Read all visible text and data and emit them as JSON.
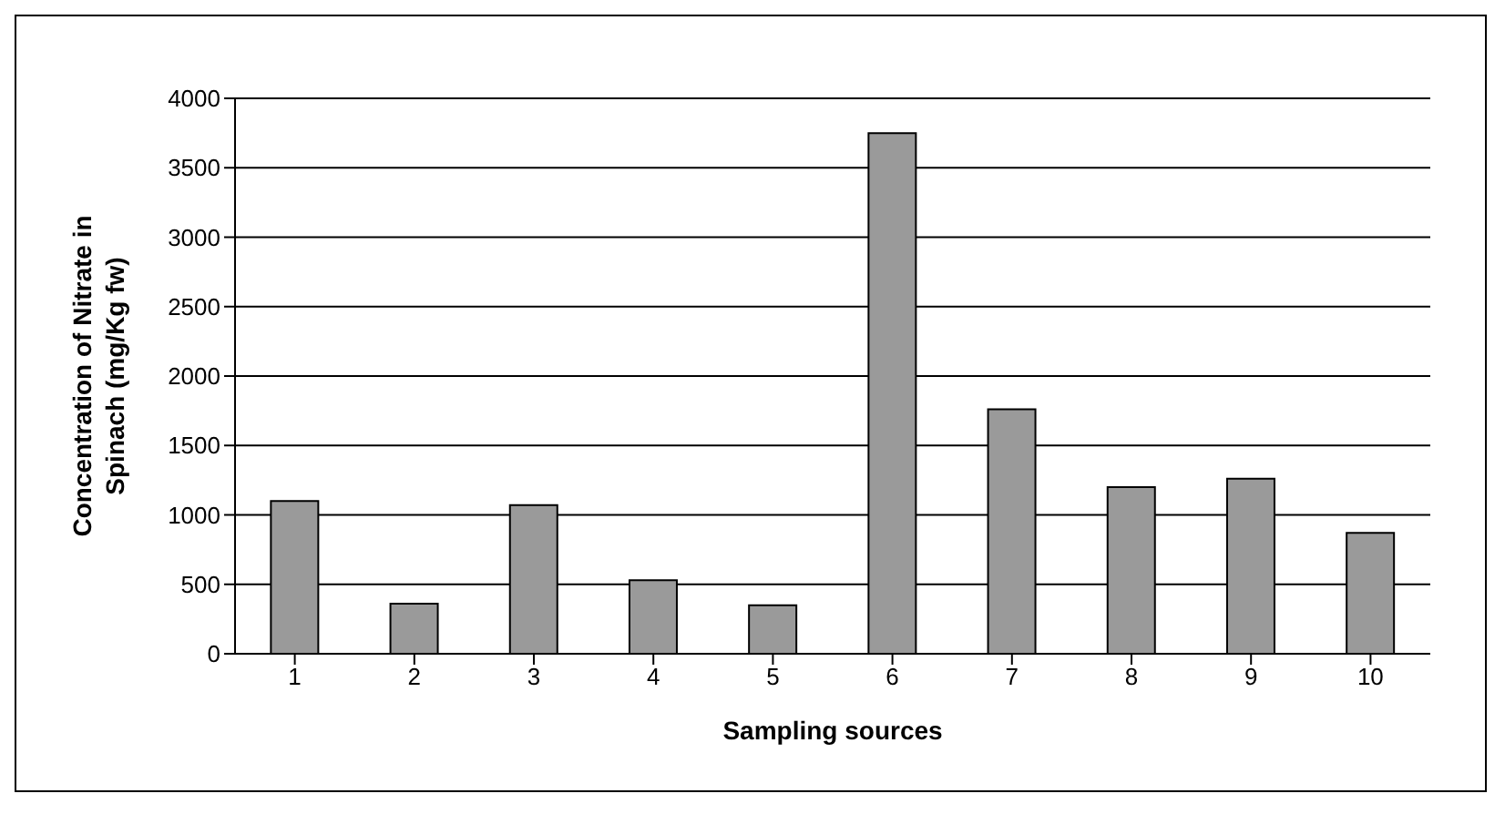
{
  "chart_data": {
    "type": "bar",
    "xlabel": "Sampling sources",
    "ylabel": "Concentration of Nitrate in Spinach (mg/Kg fw)",
    "categories": [
      "1",
      "2",
      "3",
      "4",
      "5",
      "6",
      "7",
      "8",
      "9",
      "10"
    ],
    "values": [
      1100,
      360,
      1070,
      530,
      350,
      3750,
      1760,
      1200,
      1260,
      870
    ],
    "color": "#9a9a9a",
    "ylim": [
      0,
      4000
    ],
    "yticks": [
      0,
      500,
      1000,
      1500,
      2000,
      2500,
      3000,
      3500,
      4000
    ],
    "grid": "y"
  }
}
